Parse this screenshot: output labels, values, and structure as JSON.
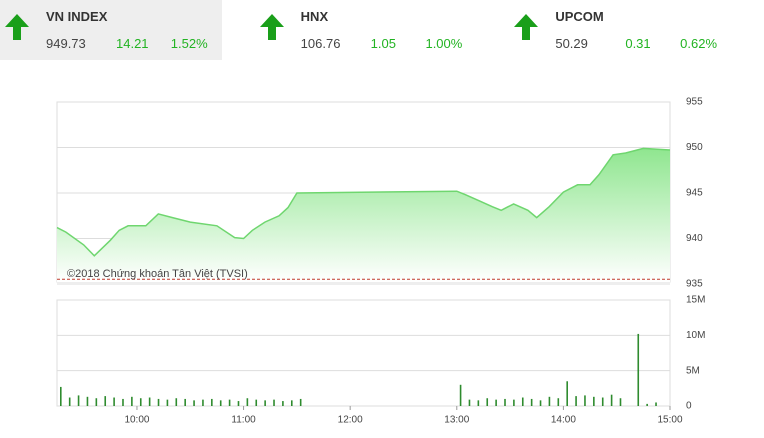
{
  "indices": [
    {
      "name": "VN INDEX",
      "value": "949.73",
      "change": "14.21",
      "percent": "1.52%"
    },
    {
      "name": "HNX",
      "value": "106.76",
      "change": "1.05",
      "percent": "1.00%"
    },
    {
      "name": "UPCOM",
      "value": "50.29",
      "change": "0.31",
      "percent": "0.62%"
    }
  ],
  "chart_data": [
    {
      "type": "area",
      "annotation": "©2018 Chứng khoán Tân Việt (TVSI)",
      "color": "#6fd66f",
      "x": [
        555,
        560,
        570,
        576,
        585,
        590,
        595,
        605,
        612,
        620,
        630,
        645,
        655,
        660,
        665,
        672,
        680,
        685,
        690,
        780,
        785,
        792,
        800,
        805,
        812,
        820,
        825,
        832,
        840,
        848,
        855,
        860,
        868,
        875,
        885,
        900
      ],
      "values": [
        941.2,
        940.7,
        939.3,
        938.1,
        939.8,
        940.9,
        941.4,
        941.4,
        942.7,
        942.3,
        941.8,
        941.4,
        940.1,
        940.0,
        940.9,
        941.8,
        942.5,
        943.4,
        945.0,
        945.2,
        944.8,
        944.2,
        943.5,
        943.1,
        943.8,
        943.1,
        942.3,
        943.5,
        945.1,
        945.9,
        945.9,
        947.0,
        949.2,
        949.4,
        949.9,
        949.73
      ],
      "xlim": [
        555,
        900
      ],
      "ylim": [
        935,
        955
      ],
      "yticks": [
        935,
        940,
        945,
        950,
        955
      ],
      "grid": true,
      "reference_line": 935.52,
      "reference_color": "#c0392b"
    },
    {
      "type": "bar",
      "color": "#2e8b2e",
      "x": [
        555,
        560,
        565,
        570,
        575,
        580,
        585,
        590,
        595,
        600,
        605,
        610,
        615,
        620,
        625,
        630,
        635,
        640,
        645,
        650,
        655,
        660,
        665,
        670,
        675,
        680,
        685,
        690,
        780,
        785,
        790,
        795,
        800,
        805,
        810,
        815,
        820,
        825,
        830,
        835,
        840,
        845,
        850,
        855,
        860,
        865,
        870,
        880,
        885,
        890
      ],
      "values": [
        2.7,
        1.2,
        1.5,
        1.3,
        1.1,
        1.4,
        1.2,
        1.0,
        1.3,
        1.1,
        1.2,
        1.0,
        0.9,
        1.1,
        1.0,
        0.8,
        0.9,
        1.0,
        0.8,
        0.9,
        0.7,
        1.1,
        0.9,
        0.8,
        0.9,
        0.7,
        0.8,
        1.0,
        3.0,
        0.9,
        0.8,
        1.1,
        0.9,
        1.0,
        0.9,
        1.2,
        1.0,
        0.8,
        1.3,
        1.1,
        3.5,
        1.4,
        1.5,
        1.3,
        1.2,
        1.6,
        1.1,
        10.2,
        0.3,
        0.5
      ],
      "xlim": [
        555,
        900
      ],
      "ylim": [
        0,
        15
      ],
      "yticks": [
        0,
        {
          "value": 5,
          "label": "5M"
        },
        {
          "value": 10,
          "label": "10M"
        },
        {
          "value": 15,
          "label": "15M"
        }
      ],
      "xticks": [
        {
          "value": 600,
          "label": "10:00"
        },
        {
          "value": 660,
          "label": "11:00"
        },
        {
          "value": 720,
          "label": "12:00"
        },
        {
          "value": 780,
          "label": "13:00"
        },
        {
          "value": 840,
          "label": "14:00"
        },
        {
          "value": 900,
          "label": "15:00"
        }
      ],
      "grid": true
    }
  ]
}
